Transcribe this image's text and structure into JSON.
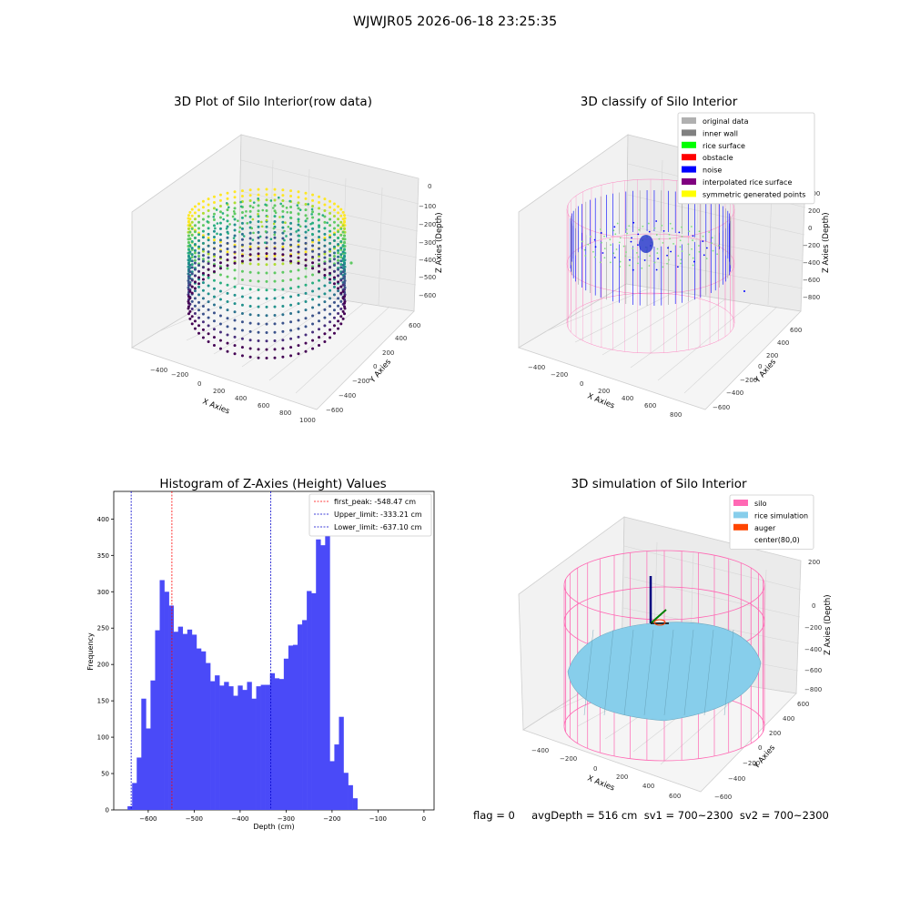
{
  "suptitle": "WJWJR05 2026-06-18 23:25:35",
  "colors": {
    "hist_bar": "#4a4af8",
    "first_peak_line": "#ff0000",
    "limit_line": "#0000cc",
    "silo": "#ff69b4",
    "rice_simulation": "#87ceeb",
    "auger": "#ff4500",
    "noise": "#0000ff",
    "rice_surface": "#00ff00",
    "obstacle": "#ff0000"
  },
  "chart_data": [
    {
      "type": "scatter",
      "subtype": "3d",
      "title": "3D Plot of Silo Interior(row data)",
      "xlabel": "X Axies",
      "ylabel": "Y Axies",
      "zlabel": "Z Axies (Depth)",
      "xticks": [
        "−400",
        "−200",
        "0",
        "200",
        "400",
        "600",
        "800",
        "1000"
      ],
      "yticks": [
        "600",
        "400",
        "200",
        "0",
        "−200",
        "−400",
        "−600"
      ],
      "zticks": [
        "0",
        "−100",
        "−200",
        "−300",
        "−400",
        "−500",
        "−600"
      ],
      "colormap": "viridis"
    },
    {
      "type": "scatter",
      "subtype": "3d",
      "title": "3D classify of Silo Interior",
      "xlabel": "X Axies",
      "ylabel": "Y Axies",
      "zlabel": "Z Axies (Depth)",
      "xticks": [
        "−400",
        "−200",
        "0",
        "200",
        "400",
        "600",
        "800"
      ],
      "yticks": [
        "600",
        "400",
        "200",
        "0",
        "−200",
        "−400",
        "−600"
      ],
      "zticks": [
        "400",
        "200",
        "0",
        "−200",
        "−400",
        "−600",
        "−800"
      ],
      "legend_position": "top-right",
      "legend": [
        {
          "label": "original data",
          "color": "#b0b0b0"
        },
        {
          "label": "inner wall",
          "color": "#808080"
        },
        {
          "label": "rice surface",
          "color": "#00ff00"
        },
        {
          "label": "obstacle",
          "color": "#ff0000"
        },
        {
          "label": "noise",
          "color": "#0000ff"
        },
        {
          "label": "interpolated rice surface",
          "color": "#800080"
        },
        {
          "label": "symmetric generated points",
          "color": "#ffff00"
        }
      ]
    },
    {
      "type": "bar",
      "subtype": "histogram",
      "title": "Histogram of Z-Axies (Height) Values",
      "xlabel": "Depth (cm)",
      "ylabel": "Frequency",
      "xlim": [
        -675,
        22
      ],
      "ylim": [
        0,
        438
      ],
      "xticks": [
        -600,
        -500,
        -400,
        -300,
        -200,
        -100,
        0
      ],
      "xtick_labels": [
        "−600",
        "−500",
        "−400",
        "−300",
        "−200",
        "−100",
        "0"
      ],
      "yticks": [
        0,
        50,
        100,
        150,
        200,
        250,
        300,
        350,
        400
      ],
      "bin_start": -645,
      "bin_width": 10,
      "values": [
        5,
        37,
        72,
        153,
        112,
        178,
        247,
        316,
        300,
        281,
        245,
        252,
        242,
        248,
        241,
        222,
        218,
        202,
        177,
        185,
        171,
        176,
        170,
        157,
        171,
        165,
        176,
        153,
        170,
        172,
        172,
        188,
        181,
        180,
        208,
        226,
        227,
        255,
        261,
        301,
        298,
        372,
        364,
        418,
        67,
        90,
        128,
        51,
        34,
        16
      ],
      "vlines": [
        {
          "label": "first_peak: -548.47 cm",
          "x": -548.47,
          "color": "#ff0000"
        },
        {
          "label": "Upper_limit: -333.21 cm",
          "x": -333.21,
          "color": "#0000cc"
        },
        {
          "label": "Lower_limit: -637.10 cm",
          "x": -637.1,
          "color": "#0000cc"
        }
      ],
      "legend_position": "top-right"
    },
    {
      "type": "surface",
      "subtype": "3d",
      "title": "3D simulation of Silo Interior",
      "xlabel": "X Axies",
      "ylabel": "Y Axies",
      "zlabel": "Z Axies (Depth)",
      "xticks": [
        "−400",
        "−200",
        "0",
        "200",
        "400",
        "600"
      ],
      "yticks": [
        "600",
        "400",
        "200",
        "0",
        "−200",
        "−400",
        "−600"
      ],
      "zticks": [
        "200",
        "0",
        "−200",
        "−400",
        "−600",
        "−800"
      ],
      "legend_position": "top-right",
      "legend": [
        {
          "label": "silo",
          "color": "#ff69b4"
        },
        {
          "label": "rice simulation",
          "color": "#87ceeb"
        },
        {
          "label": "auger",
          "color": "#ff4500"
        },
        {
          "label": "center(80,0)",
          "color": ""
        }
      ]
    }
  ],
  "footer": "flag = 0     avgDepth = 516 cm  sv1 = 700~2300  sv2 = 700~2300"
}
